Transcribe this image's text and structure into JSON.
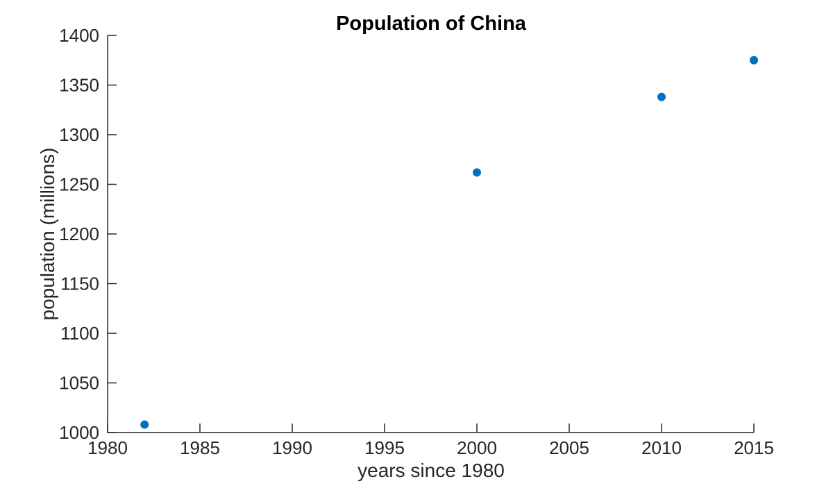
{
  "figure": {
    "background": "#ffffff"
  },
  "chart_data": {
    "type": "scatter",
    "title": "Population of China",
    "xlabel": "years since 1980",
    "ylabel": "population (millions)",
    "points": [
      {
        "x": 1982,
        "y": 1008
      },
      {
        "x": 2000,
        "y": 1262
      },
      {
        "x": 2010,
        "y": 1338
      },
      {
        "x": 2015,
        "y": 1375
      }
    ],
    "xlim": [
      1980,
      2015
    ],
    "ylim": [
      1000,
      1400
    ],
    "xticks": [
      1980,
      1985,
      1990,
      1995,
      2000,
      2005,
      2010,
      2015
    ],
    "yticks": [
      1000,
      1050,
      1100,
      1150,
      1200,
      1250,
      1300,
      1350,
      1400
    ],
    "grid": false,
    "legend": "none",
    "box": false,
    "tick_direction": "in",
    "marker": "filled-circle",
    "marker_color": "#0072BD",
    "axis_color": "#262626",
    "title_color": "#000000"
  }
}
